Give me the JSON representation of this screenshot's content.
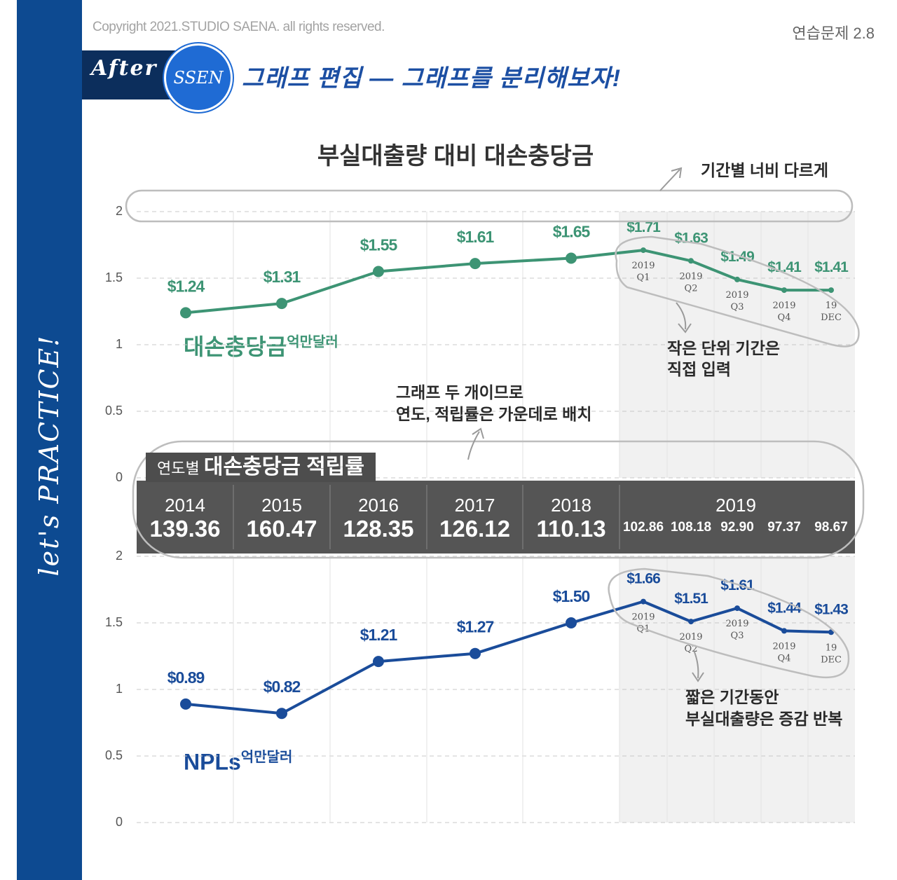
{
  "header": {
    "copyright": "Copyright 2021.STUDIO SAENA. all rights reserved.",
    "exercise": "연습문제 2.8",
    "after_label": "After",
    "ssen_label": "SSEN",
    "subtitle": "그래프 편집 — 그래프를 분리해보자!"
  },
  "sidebar": {
    "text": "let's PRACTICE!"
  },
  "colors": {
    "sidebar": "#0d4a91",
    "green": "#3d9474",
    "navy": "#1a4c9a",
    "table": "#555555",
    "shade": "#f1f1f1"
  },
  "annotations": {
    "width": "기간별 너비 다르게",
    "small_units_1": "작은 단위 기간은",
    "small_units_2": "직접 입력",
    "two_graphs_1": "그래프 두 개이므로",
    "two_graphs_2": "연도, 적립률은 가운데로 배치",
    "repeat_1": "짧은 기간동안",
    "repeat_2": "부실대출량은 증감 반복"
  },
  "table": {
    "label_small": "연도별",
    "label_big": "대손충당금 적립률",
    "years": [
      "2014",
      "2015",
      "2016",
      "2017",
      "2018"
    ],
    "values": [
      "139.36",
      "160.47",
      "128.35",
      "126.12",
      "110.13"
    ],
    "year_2019": "2019",
    "values_2019": [
      "102.86",
      "108.18",
      "92.90",
      "97.37",
      "98.67"
    ]
  },
  "chart_data": [
    {
      "type": "line",
      "title": "부실대출량 대비 대손충당금",
      "series_name": "대손충당금",
      "unit": "억만달러",
      "ylim": [
        0,
        2
      ],
      "yticks": [
        "2",
        "1.5",
        "1",
        "0.5",
        "0"
      ],
      "categories": [
        "2014",
        "2015",
        "2016",
        "2017",
        "2018",
        "2019 Q1",
        "2019 Q2",
        "2019 Q3",
        "2019 Q4",
        "19 DEC"
      ],
      "tick_labels": [
        [
          "",
          ""
        ],
        [
          "",
          ""
        ],
        [
          "",
          ""
        ],
        [
          "",
          ""
        ],
        [
          "",
          ""
        ],
        [
          "2019",
          "Q1"
        ],
        [
          "2019",
          "Q2"
        ],
        [
          "2019",
          "Q3"
        ],
        [
          "2019",
          "Q4"
        ],
        [
          "19",
          "DEC"
        ]
      ],
      "values": [
        1.24,
        1.31,
        1.55,
        1.61,
        1.65,
        1.71,
        1.63,
        1.49,
        1.41,
        1.41
      ],
      "labels": [
        "$1.24",
        "$1.31",
        "$1.55",
        "$1.61",
        "$1.65",
        "$1.71",
        "$1.63",
        "$1.49",
        "$1.41",
        "$1.41"
      ]
    },
    {
      "type": "line",
      "series_name": "NPLs",
      "unit": "억만달러",
      "ylim": [
        0,
        2
      ],
      "yticks": [
        "2",
        "1.5",
        "1",
        "0.5",
        "0"
      ],
      "categories": [
        "2014",
        "2015",
        "2016",
        "2017",
        "2018",
        "2019 Q1",
        "2019 Q2",
        "2019 Q3",
        "2019 Q4",
        "19 DEC"
      ],
      "tick_labels": [
        [
          "",
          ""
        ],
        [
          "",
          ""
        ],
        [
          "",
          ""
        ],
        [
          "",
          ""
        ],
        [
          "",
          ""
        ],
        [
          "2019",
          "Q1"
        ],
        [
          "2019",
          "Q2"
        ],
        [
          "2019",
          "Q3"
        ],
        [
          "2019",
          "Q4"
        ],
        [
          "19",
          "DEC"
        ]
      ],
      "values": [
        0.89,
        0.82,
        1.21,
        1.27,
        1.5,
        1.66,
        1.51,
        1.61,
        1.44,
        1.43
      ],
      "labels": [
        "$0.89",
        "$0.82",
        "$1.21",
        "$1.27",
        "$1.50",
        "$1.66",
        "$1.51",
        "$1.61",
        "$1.44",
        "$1.43"
      ]
    }
  ]
}
